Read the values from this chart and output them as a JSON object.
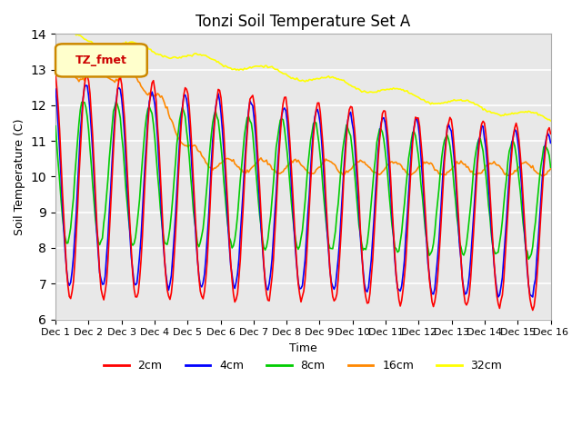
{
  "title": "Tonzi Soil Temperature Set A",
  "xlabel": "Time",
  "ylabel": "Soil Temperature (C)",
  "ylim": [
    6.0,
    14.0
  ],
  "yticks": [
    6.0,
    7.0,
    8.0,
    9.0,
    10.0,
    11.0,
    12.0,
    13.0,
    14.0
  ],
  "xtick_labels": [
    "Dec 1",
    "Dec 2",
    "Dec 3",
    "Dec 4",
    "Dec 5",
    "Dec 6",
    "Dec 7",
    "Dec 8",
    "Dec 9",
    "Dec 10",
    "Dec 11",
    "Dec 12",
    "Dec 13",
    "Dec 14",
    "Dec 15",
    "Dec 16"
  ],
  "legend_label": "TZ_fmet",
  "series_labels": [
    "2cm",
    "4cm",
    "8cm",
    "16cm",
    "32cm"
  ],
  "series_colors": [
    "#ff0000",
    "#0000ff",
    "#00cc00",
    "#ff8800",
    "#ffff00"
  ],
  "background_color": "#e8e8e8",
  "n_points": 360,
  "n_days": 15
}
